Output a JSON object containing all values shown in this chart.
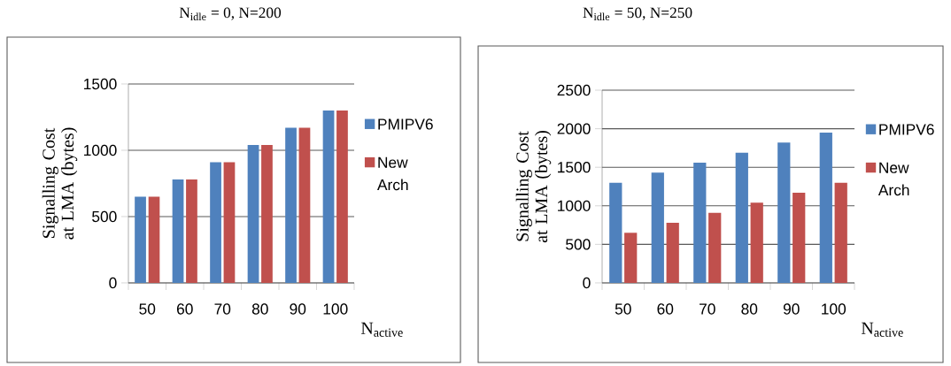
{
  "chart_data": [
    {
      "type": "bar",
      "title": "N$_{idle}$ = 0, N=200",
      "xlabel": "N$_{active}$",
      "ylabel": "Signalling Cost at LMA (bytes)",
      "categories": [
        "50",
        "60",
        "70",
        "80",
        "90",
        "100"
      ],
      "series": [
        {
          "name": "PMIPV6",
          "color": "#4f81bd",
          "values": [
            650,
            780,
            910,
            1040,
            1170,
            1300
          ]
        },
        {
          "name": "New Arch",
          "color": "#c0504d",
          "values": [
            650,
            780,
            910,
            1040,
            1170,
            1300
          ]
        }
      ],
      "ylim": [
        0,
        1500
      ],
      "yticks": [
        0,
        500,
        1000,
        1500
      ],
      "grid": "y",
      "legend": "right"
    },
    {
      "type": "bar",
      "title": "N$_{idle}$ = 50, N=250",
      "xlabel": "N$_{active}$",
      "ylabel": "Signalling Cost at LMA (bytes)",
      "categories": [
        "50",
        "60",
        "70",
        "80",
        "90",
        "100"
      ],
      "series": [
        {
          "name": "PMIPV6",
          "color": "#4f81bd",
          "values": [
            1300,
            1430,
            1560,
            1690,
            1820,
            1950
          ]
        },
        {
          "name": "New Arch",
          "color": "#c0504d",
          "values": [
            650,
            780,
            910,
            1040,
            1170,
            1300
          ]
        }
      ],
      "ylim": [
        0,
        2500
      ],
      "yticks": [
        0,
        500,
        1000,
        1500,
        2000,
        2500
      ],
      "grid": "y",
      "legend": "right"
    }
  ]
}
